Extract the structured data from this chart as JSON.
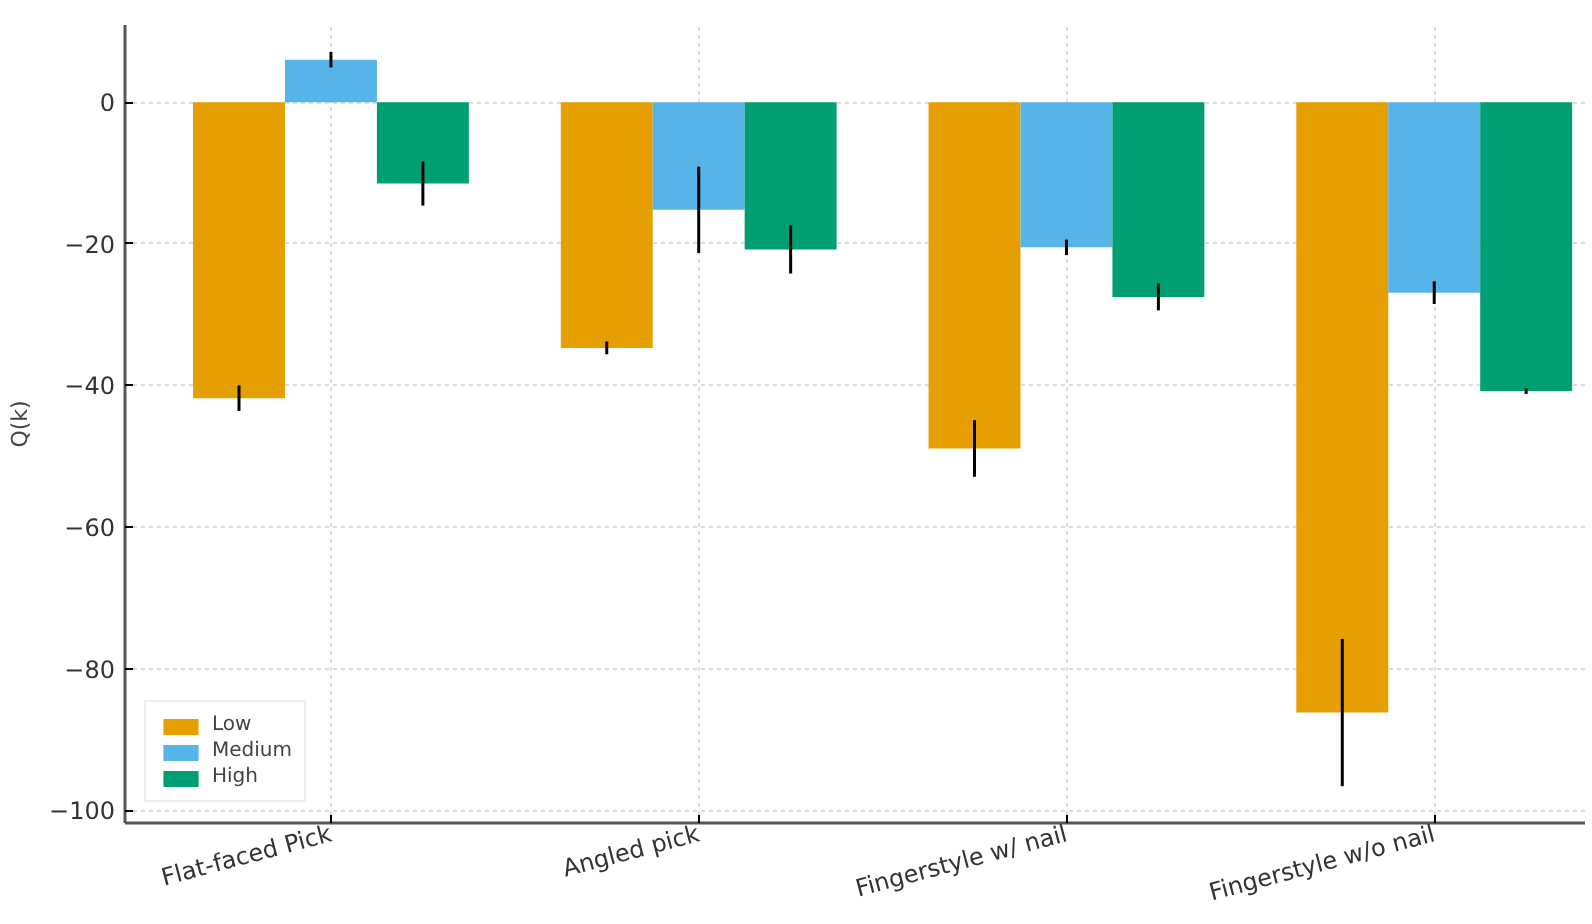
{
  "chart_data": {
    "type": "bar",
    "ylabel": "Q(k)",
    "categories": [
      "Flat-faced Pick",
      "Angled pick",
      "Fingerstyle w/ nail",
      "Fingerstyle w/o nail"
    ],
    "series": [
      {
        "name": "Low",
        "color": "#e69f00",
        "values": [
          -41.8,
          -34.7,
          -48.9,
          -86.2
        ],
        "errors": [
          1.8,
          0.9,
          4,
          10.4
        ]
      },
      {
        "name": "Medium",
        "color": "#56b4e9",
        "values": [
          6.0,
          -15.2,
          -20.5,
          -26.9
        ],
        "errors": [
          1.1,
          6.1,
          1.1,
          1.6
        ]
      },
      {
        "name": "High",
        "color": "#009e73",
        "values": [
          -11.5,
          -20.8,
          -27.5,
          -40.8
        ],
        "errors": [
          3.1,
          3.4,
          1.9,
          0.4
        ]
      }
    ],
    "ylim": [
      -101.8,
      10.9
    ],
    "yticks": [
      0,
      -20,
      -40,
      -60,
      -80,
      -100
    ],
    "grid": true,
    "legend": "bottom left"
  }
}
